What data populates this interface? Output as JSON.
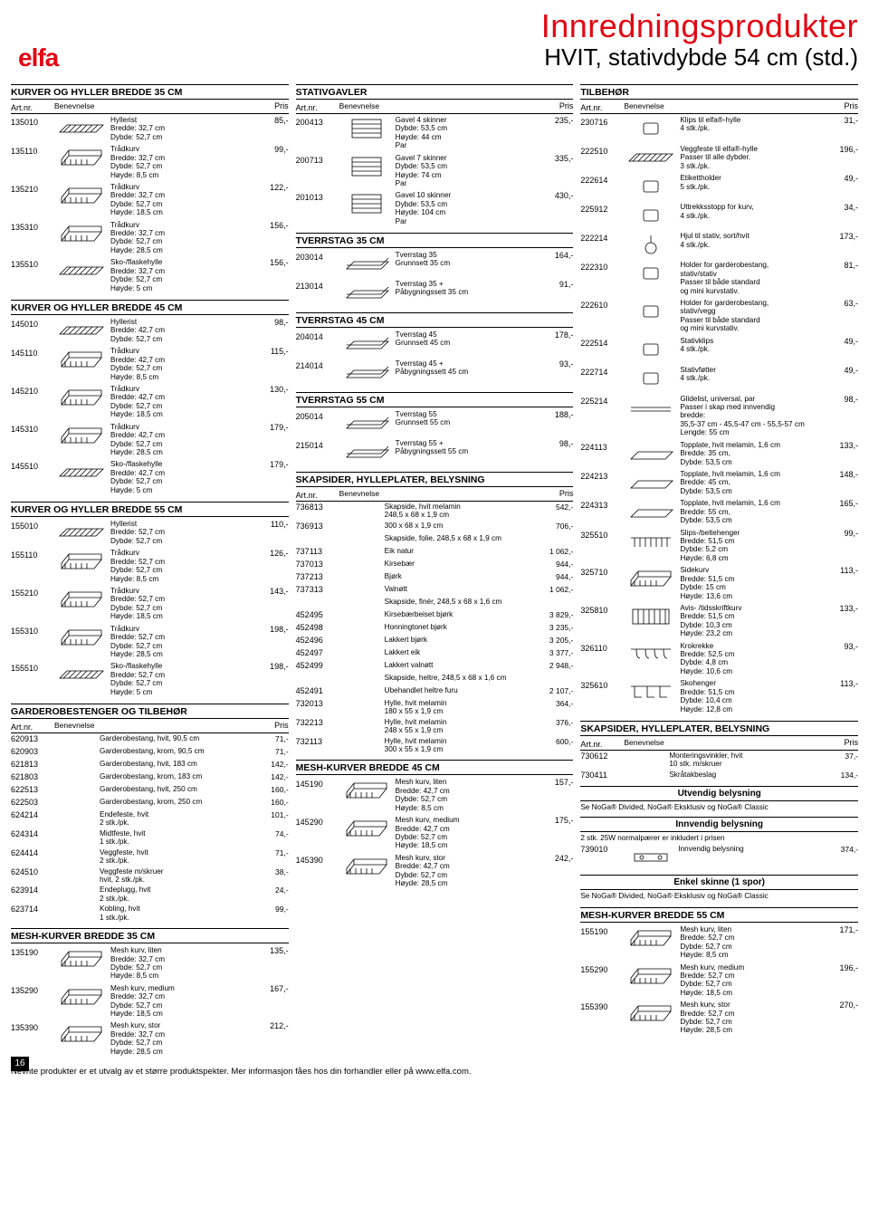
{
  "titles": {
    "main": "Innredningsprodukter",
    "sub": "HVIT, stativdybde 54 cm (std.)",
    "logo": "elfa"
  },
  "headers": {
    "art": "Art.nr.",
    "ben": "Benevnelse",
    "pris": "Pris"
  },
  "col1": {
    "s1": {
      "title": "KURVER OG HYLLER BREDDE 35 CM",
      "rows": [
        {
          "art": "135010",
          "desc": "Hyllerist\nBredde: 32,7 cm\nDybde: 52,7 cm",
          "pris": "85,-",
          "icon": "shelf"
        },
        {
          "art": "135110",
          "desc": "Trådkurv\nBredde: 32,7 cm\nDybde: 52,7 cm\nHøyde: 8,5 cm",
          "pris": "99,-",
          "icon": "basket"
        },
        {
          "art": "135210",
          "desc": "Trådkurv\nBredde: 32,7 cm\nDybde: 52,7 cm\nHøyde: 18,5 cm",
          "pris": "122,-",
          "icon": "basket"
        },
        {
          "art": "135310",
          "desc": "Trådkurv\nBredde: 32,7 cm\nDybde: 52,7 cm\nHøyde: 28,5 cm",
          "pris": "156,-",
          "icon": "basket"
        },
        {
          "art": "135510",
          "desc": "Sko-/flaskehylle\nBredde: 32,7 cm\nDybde: 52,7 cm\nHøyde: 5 cm",
          "pris": "156,-",
          "icon": "shelf"
        }
      ]
    },
    "s2": {
      "title": "KURVER OG HYLLER BREDDE 45 CM",
      "rows": [
        {
          "art": "145010",
          "desc": "Hyllerist\nBredde: 42,7 cm\nDybde: 52,7 cm",
          "pris": "98,-",
          "icon": "shelf"
        },
        {
          "art": "145110",
          "desc": "Trådkurv\nBredde: 42,7 cm\nDybde: 52,7 cm\nHøyde: 8,5 cm",
          "pris": "115,-",
          "icon": "basket"
        },
        {
          "art": "145210",
          "desc": "Trådkurv\nBredde: 42,7 cm\nDybde: 52,7 cm\nHøyde: 18,5 cm",
          "pris": "130,-",
          "icon": "basket"
        },
        {
          "art": "145310",
          "desc": "Trådkurv\nBredde: 42,7 cm\nDybde: 52,7 cm\nHøyde: 28,5 cm",
          "pris": "179,-",
          "icon": "basket"
        },
        {
          "art": "145510",
          "desc": "Sko-/flaskehylle\nBredde: 42,7 cm\nDybde: 52,7 cm\nHøyde: 5 cm",
          "pris": "179,-",
          "icon": "shelf"
        }
      ]
    },
    "s3": {
      "title": "KURVER OG HYLLER BREDDE 55 CM",
      "rows": [
        {
          "art": "155010",
          "desc": "Hyllerist\nBredde: 52,7 cm\nDybde: 52,7 cm",
          "pris": "110,-",
          "icon": "shelf"
        },
        {
          "art": "155110",
          "desc": "Trådkurv\nBredde: 52,7 cm\nDybde: 52,7 cm\nHøyde: 8,5 cm",
          "pris": "126,-",
          "icon": "basket"
        },
        {
          "art": "155210",
          "desc": "Trådkurv\nBredde: 52,7 cm\nDybde: 52,7 cm\nHøyde: 18,5 cm",
          "pris": "143,-",
          "icon": "basket"
        },
        {
          "art": "155310",
          "desc": "Trådkurv\nBredde: 52,7 cm\nDybde: 52,7 cm\nHøyde: 28,5 cm",
          "pris": "198,-",
          "icon": "basket"
        },
        {
          "art": "155510",
          "desc": "Sko-/flaskehylle\nBredde: 52,7 cm\nDybde: 52,7 cm\nHøyde: 5 cm",
          "pris": "198,-",
          "icon": "shelf"
        }
      ]
    },
    "s4": {
      "title": "GARDEROBESTENGER OG TILBEHØR",
      "rows": [
        {
          "art": "620913",
          "desc": "Garderobestang, hvit, 90,5 cm",
          "pris": "71,-"
        },
        {
          "art": "620903",
          "desc": "Garderobestang, krom, 90,5 cm",
          "pris": "71,-"
        },
        {
          "art": "621813",
          "desc": "Garderobestang, hvit, 183 cm",
          "pris": "142,-"
        },
        {
          "art": "621803",
          "desc": "Garderobestang, krom, 183 cm",
          "pris": "142,-"
        },
        {
          "art": "622513",
          "desc": "Garderobestang, hvit, 250 cm",
          "pris": "160,-"
        },
        {
          "art": "622503",
          "desc": "Garderobestang, krom, 250 cm",
          "pris": "160,-"
        },
        {
          "art": "624214",
          "desc": "Endefeste, hvit\n2 stk./pk.",
          "pris": "101,-"
        },
        {
          "art": "624314",
          "desc": "Midtfeste, hvit\n1 stk./pk.",
          "pris": "74,-"
        },
        {
          "art": "624414",
          "desc": "Veggfeste, hvit\n2 stk./pk.",
          "pris": "71,-"
        },
        {
          "art": "624510",
          "desc": "Veggfeste m/skruer\nhvit, 2 stk./pk.",
          "pris": "38,-"
        },
        {
          "art": "623914",
          "desc": "Endeplugg, hvit\n2 stk./pk.",
          "pris": "24,-"
        },
        {
          "art": "623714",
          "desc": "Kobling, hvit\n1 stk./pk.",
          "pris": "99,-"
        }
      ]
    },
    "s5": {
      "title": "MESH-KURVER BREDDE 35 CM",
      "rows": [
        {
          "art": "135190",
          "desc": "Mesh kurv, liten\nBredde: 32,7 cm\nDybde: 52,7 cm\nHøyde: 8,5 cm",
          "pris": "135,-",
          "icon": "basket"
        },
        {
          "art": "135290",
          "desc": "Mesh kurv, medium\nBredde: 32,7 cm\nDybde: 52,7 cm\nHøyde: 18,5 cm",
          "pris": "167,-",
          "icon": "basket"
        },
        {
          "art": "135390",
          "desc": "Mesh kurv, stor\nBredde: 32,7 cm\nDybde: 52,7 cm\nHøyde: 28,5 cm",
          "pris": "212,-",
          "icon": "basket"
        }
      ]
    }
  },
  "col2": {
    "s1": {
      "title": "STATIVGAVLER",
      "rows": [
        {
          "art": "200413",
          "desc": "Gavel 4 skinner\nDybde: 53,5 cm\nHøyde: 44 cm\nPar",
          "pris": "235,-",
          "icon": "gable"
        },
        {
          "art": "200713",
          "desc": "Gavel 7 skinner\nDybde: 53,5 cm\nHøyde: 74 cm\nPar",
          "pris": "335,-",
          "icon": "gable"
        },
        {
          "art": "201013",
          "desc": "Gavel 10 skinner\nDybde: 53,5 cm\nHøyde: 104 cm\nPar",
          "pris": "430,-",
          "icon": "gable"
        }
      ]
    },
    "s2": {
      "title": "TVERRSTAG 35 CM",
      "rows": [
        {
          "art": "203014",
          "desc": "Tverrstag 35\nGrunnsett 35 cm",
          "pris": "164,-",
          "icon": "cross"
        },
        {
          "art": "213014",
          "desc": "Tverrstag 35 +\nPåbygningssett 35 cm",
          "pris": "91,-",
          "icon": "cross"
        }
      ]
    },
    "s3": {
      "title": "TVERRSTAG 45 CM",
      "rows": [
        {
          "art": "204014",
          "desc": "Tverrstag 45\nGrunnsett 45 cm",
          "pris": "178,-",
          "icon": "cross"
        },
        {
          "art": "214014",
          "desc": "Tverrstag 45 +\nPåbygningssett 45 cm",
          "pris": "93,-",
          "icon": "cross"
        }
      ]
    },
    "s4": {
      "title": "TVERRSTAG 55 CM",
      "rows": [
        {
          "art": "205014",
          "desc": "Tverrstag 55\nGrunnsett 55 cm",
          "pris": "188,-",
          "icon": "cross"
        },
        {
          "art": "215014",
          "desc": "Tverrstag 55 +\nPåbygningssett 55 cm",
          "pris": "98,-",
          "icon": "cross"
        }
      ]
    },
    "s5": {
      "title": "SKAPSIDER, HYLLEPLATER, BELYSNING",
      "rows": [
        {
          "art": "736813",
          "desc": "Skapside, hvit melamin\n248,5 x 68 x 1,9 cm",
          "pris": "542,-"
        },
        {
          "art": "736913",
          "desc": "300 x 68 x 1,9 cm",
          "pris": "706,-"
        },
        {
          "art": "",
          "desc": "Skapside, folie, 248,5 x 68 x 1,9 cm",
          "pris": ""
        },
        {
          "art": "737113",
          "desc": "Eik natur",
          "pris": "1 062,-"
        },
        {
          "art": "737013",
          "desc": "Kirsebær",
          "pris": "944,-"
        },
        {
          "art": "737213",
          "desc": "Bjørk",
          "pris": "944,-"
        },
        {
          "art": "737313",
          "desc": "Valnøtt",
          "pris": "1 062,-"
        },
        {
          "art": "",
          "desc": "Skapside, finér, 248,5 x 68 x 1,6 cm",
          "pris": ""
        },
        {
          "art": "452495",
          "desc": "Kirsebærbeiset bjørk",
          "pris": "3 829,-"
        },
        {
          "art": "452498",
          "desc": "Honningtonet bjørk",
          "pris": "3 235,-"
        },
        {
          "art": "452496",
          "desc": "Lakkert bjørk",
          "pris": "3 205,-"
        },
        {
          "art": "452497",
          "desc": "Lakkert eik",
          "pris": "3 377,-"
        },
        {
          "art": "452499",
          "desc": "Lakkert valnøtt",
          "pris": "2 948,-"
        },
        {
          "art": "",
          "desc": "Skapside, heltre, 248,5 x 68 x 1,6 cm",
          "pris": ""
        },
        {
          "art": "452491",
          "desc": "Ubehandlet heltre furu",
          "pris": "2 107,-"
        },
        {
          "art": "732013",
          "desc": "Hylle, hvit melamin\n180 x 55 x 1,9 cm",
          "pris": "364,-"
        },
        {
          "art": "732213",
          "desc": "Hylle, hvit melamin\n248 x 55 x 1,9 cm",
          "pris": "376,-"
        },
        {
          "art": "732113",
          "desc": "Hylle, hvit melamin\n300 x 55 x 1,9 cm",
          "pris": "600,-"
        }
      ]
    },
    "s6": {
      "title": "MESH-KURVER BREDDE 45 CM",
      "rows": [
        {
          "art": "145190",
          "desc": "Mesh kurv, liten\nBredde: 42,7 cm\nDybde: 52,7 cm\nHøyde: 8,5 cm",
          "pris": "157,-",
          "icon": "basket"
        },
        {
          "art": "145290",
          "desc": "Mesh kurv, medium\nBredde: 42,7 cm\nDybde: 52,7 cm\nHøyde: 18,5 cm",
          "pris": "175,-",
          "icon": "basket"
        },
        {
          "art": "145390",
          "desc": "Mesh kurv, stor\nBredde: 42,7 cm\nDybde: 52,7 cm\nHøyde: 28,5 cm",
          "pris": "242,-",
          "icon": "basket"
        }
      ]
    }
  },
  "col3": {
    "s1": {
      "title": "TILBEHØR",
      "rows": [
        {
          "art": "230716",
          "desc": "Klips til elfa®-hylle\n4 stk./pk.",
          "pris": "31,-",
          "icon": "clip"
        },
        {
          "art": "222510",
          "desc": "Veggfeste til elfa®-hylle\nPasser til alle dybder.\n3 stk./pk.",
          "pris": "196,-",
          "icon": "shelf"
        },
        {
          "art": "222614",
          "desc": "Etikettholder\n5 stk./pk.",
          "pris": "49,-",
          "icon": "clip"
        },
        {
          "art": "225912",
          "desc": "Uttrekksstopp for kurv,\n4 stk./pk.",
          "pris": "34,-",
          "icon": "clip"
        },
        {
          "art": "222214",
          "desc": "Hjul til stativ, sort/hvit\n4 stk./pk.",
          "pris": "173,-",
          "icon": "wheel"
        },
        {
          "art": "222310",
          "desc": "Holder for garderobestang,\nstativ/stativ\nPasser til både standard\nog mini kurvstativ.",
          "pris": "81,-",
          "icon": "clip"
        },
        {
          "art": "222610",
          "desc": "Holder for garderobestang,\nstativ/vegg\nPasser til både standard\nog mini kurvstativ.",
          "pris": "63,-",
          "icon": "clip"
        },
        {
          "art": "222514",
          "desc": "Stativklips\n4 stk./pk.",
          "pris": "49,-",
          "icon": "clip"
        },
        {
          "art": "222714",
          "desc": "Stativføtter\n4 stk./pk.",
          "pris": "49,-",
          "icon": "clip"
        },
        {
          "art": "225214",
          "desc": "Glidelist, universal, par\nPasser i skap med innvendig\nbredde:\n35,5-37 cm - 45,5-47 cm - 55,5-57 cm\nLengde: 55 cm",
          "pris": "98,-",
          "icon": "rail"
        },
        {
          "art": "224113",
          "desc": "Topplate, hvit melamin, 1,6 cm\nBredde: 35 cm,\nDybde: 53,5 cm",
          "pris": "133,-",
          "icon": "plate"
        },
        {
          "art": "224213",
          "desc": "Topplate, hvit melamin, 1,6 cm\nBredde: 45 cm,\nDybde: 53,5 cm",
          "pris": "148,-",
          "icon": "plate"
        },
        {
          "art": "224313",
          "desc": "Topplate, hvit melamin, 1,6 cm\nBredde: 55 cm,\nDybde: 53,5 cm",
          "pris": "165,-",
          "icon": "plate"
        },
        {
          "art": "325510",
          "desc": "Slips-/beltehenger\nBredde: 51,5 cm\nDybde: 5,2 cm\nHøyde: 6,8 cm",
          "pris": "99,-",
          "icon": "rack"
        },
        {
          "art": "325710",
          "desc": "Sidekurv\nBredde: 51,5 cm\nDybde: 15 cm\nHøyde: 13,6 cm",
          "pris": "113,-",
          "icon": "basket"
        },
        {
          "art": "325810",
          "desc": "Avis- /tidsskriftkurv\nBredde: 51,5 cm\nDybde: 10,3 cm\nHøyde: 23,2 cm",
          "pris": "133,-",
          "icon": "rack2"
        },
        {
          "art": "326110",
          "desc": "Krokrekke\nBredde: 52,5 cm\nDybde: 4,8 cm\nHøyde: 10,6 cm",
          "pris": "93,-",
          "icon": "hooks"
        },
        {
          "art": "325610",
          "desc": "Skohenger\nBredde: 51,5 cm\nDybde: 10,4 cm\nHøyde: 12,8 cm",
          "pris": "113,-",
          "icon": "shoe"
        }
      ]
    },
    "s2": {
      "title": "SKAPSIDER, HYLLEPLATER, BELYSNING",
      "rows": [
        {
          "art": "730612",
          "desc": "Monteringsvinkler, hvit\n10 stk. m/skruer",
          "pris": "37,-"
        },
        {
          "art": "730411",
          "desc": "Skråtakbeslag",
          "pris": "134,-"
        }
      ],
      "subhead1": "Utvendig belysning",
      "note1": "Se NoGa® Divided, NoGa® Eksklusiv og NoGa® Classic",
      "subhead2": "Innvendig belysning",
      "note2": "2 stk. 25W normalpærer er inkludert i prisen",
      "rows2": [
        {
          "art": "739010",
          "desc": "Innvendig belysning",
          "pris": "374,-",
          "icon": "light"
        }
      ],
      "subhead3": "Enkel skinne (1 spor)",
      "note3": "Se NoGa® Divided, NoGa® Eksklusiv og NoGa® Classic"
    },
    "s3": {
      "title": "MESH-KURVER BREDDE 55 CM",
      "rows": [
        {
          "art": "155190",
          "desc": "Mesh kurv, liten\nBredde: 52,7 cm\nDybde: 52,7 cm\nHøyde: 8,5 cm",
          "pris": "171,-",
          "icon": "basket"
        },
        {
          "art": "155290",
          "desc": "Mesh kurv, medium\nBredde: 52,7 cm\nDybde: 52,7 cm\nHøyde: 18,5 cm",
          "pris": "196,-",
          "icon": "basket"
        },
        {
          "art": "155390",
          "desc": "Mesh kurv, stor\nBredde: 52,7 cm\nDybde: 52,7 cm\nHøyde: 28,5 cm",
          "pris": "270,-",
          "icon": "basket"
        }
      ]
    }
  },
  "footer": {
    "page": "16",
    "text": "Nevnte produkter er et utvalg av et større produktspekter. Mer informasjon fåes hos din forhandler eller på www.elfa.com."
  }
}
